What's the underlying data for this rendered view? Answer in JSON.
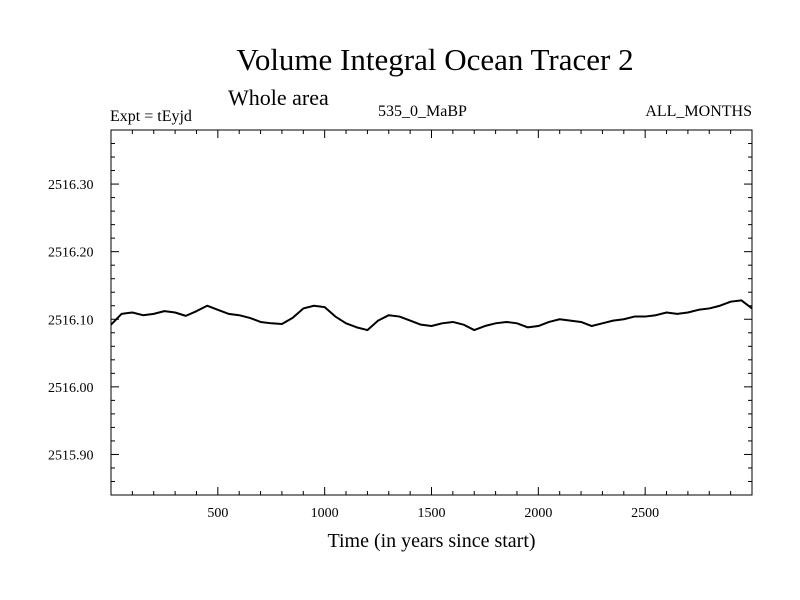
{
  "header": {
    "title": "Volume Integral Ocean Tracer 2",
    "subtitle": "Whole area",
    "experiment": "Expt = tEyjd",
    "run": "535_0_MaBP",
    "period": "ALL_MONTHS"
  },
  "chart_data": {
    "type": "line",
    "title": "Volume Integral Ocean Tracer 2",
    "xlabel": "Time (in years since start)",
    "ylabel": "",
    "xlim": [
      0,
      3000
    ],
    "ylim": [
      2515.84,
      2516.38
    ],
    "x_ticks": [
      500,
      1000,
      1500,
      2000,
      2500
    ],
    "x_tick_labels": [
      "500",
      "1000",
      "1500",
      "2000",
      "2500"
    ],
    "y_ticks": [
      2515.9,
      2516.0,
      2516.1,
      2516.2,
      2516.3
    ],
    "y_tick_labels": [
      "2515.90",
      "2516.00",
      "2516.10",
      "2516.20",
      "2516.30"
    ],
    "grid": false,
    "series": [
      {
        "color": "#000000",
        "x": [
          0,
          50,
          100,
          150,
          200,
          250,
          300,
          350,
          400,
          450,
          500,
          550,
          600,
          650,
          700,
          750,
          800,
          850,
          900,
          950,
          1000,
          1050,
          1100,
          1150,
          1200,
          1250,
          1300,
          1350,
          1400,
          1450,
          1500,
          1550,
          1600,
          1650,
          1700,
          1750,
          1800,
          1850,
          1900,
          1950,
          2000,
          2050,
          2100,
          2150,
          2200,
          2250,
          2300,
          2350,
          2400,
          2450,
          2500,
          2550,
          2600,
          2650,
          2700,
          2750,
          2800,
          2850,
          2900,
          2950,
          3000
        ],
        "values": [
          2516.092,
          2516.108,
          2516.11,
          2516.106,
          2516.108,
          2516.112,
          2516.11,
          2516.105,
          2516.112,
          2516.12,
          2516.114,
          2516.108,
          2516.106,
          2516.102,
          2516.096,
          2516.094,
          2516.093,
          2516.102,
          2516.116,
          2516.12,
          2516.118,
          2516.104,
          2516.094,
          2516.088,
          2516.084,
          2516.098,
          2516.106,
          2516.104,
          2516.098,
          2516.092,
          2516.09,
          2516.094,
          2516.096,
          2516.092,
          2516.084,
          2516.09,
          2516.094,
          2516.096,
          2516.094,
          2516.088,
          2516.09,
          2516.096,
          2516.1,
          2516.098,
          2516.096,
          2516.09,
          2516.094,
          2516.098,
          2516.1,
          2516.104,
          2516.104,
          2516.106,
          2516.11,
          2516.108,
          2516.11,
          2516.114,
          2516.116,
          2516.12,
          2516.126,
          2516.128,
          2516.116
        ]
      }
    ]
  }
}
